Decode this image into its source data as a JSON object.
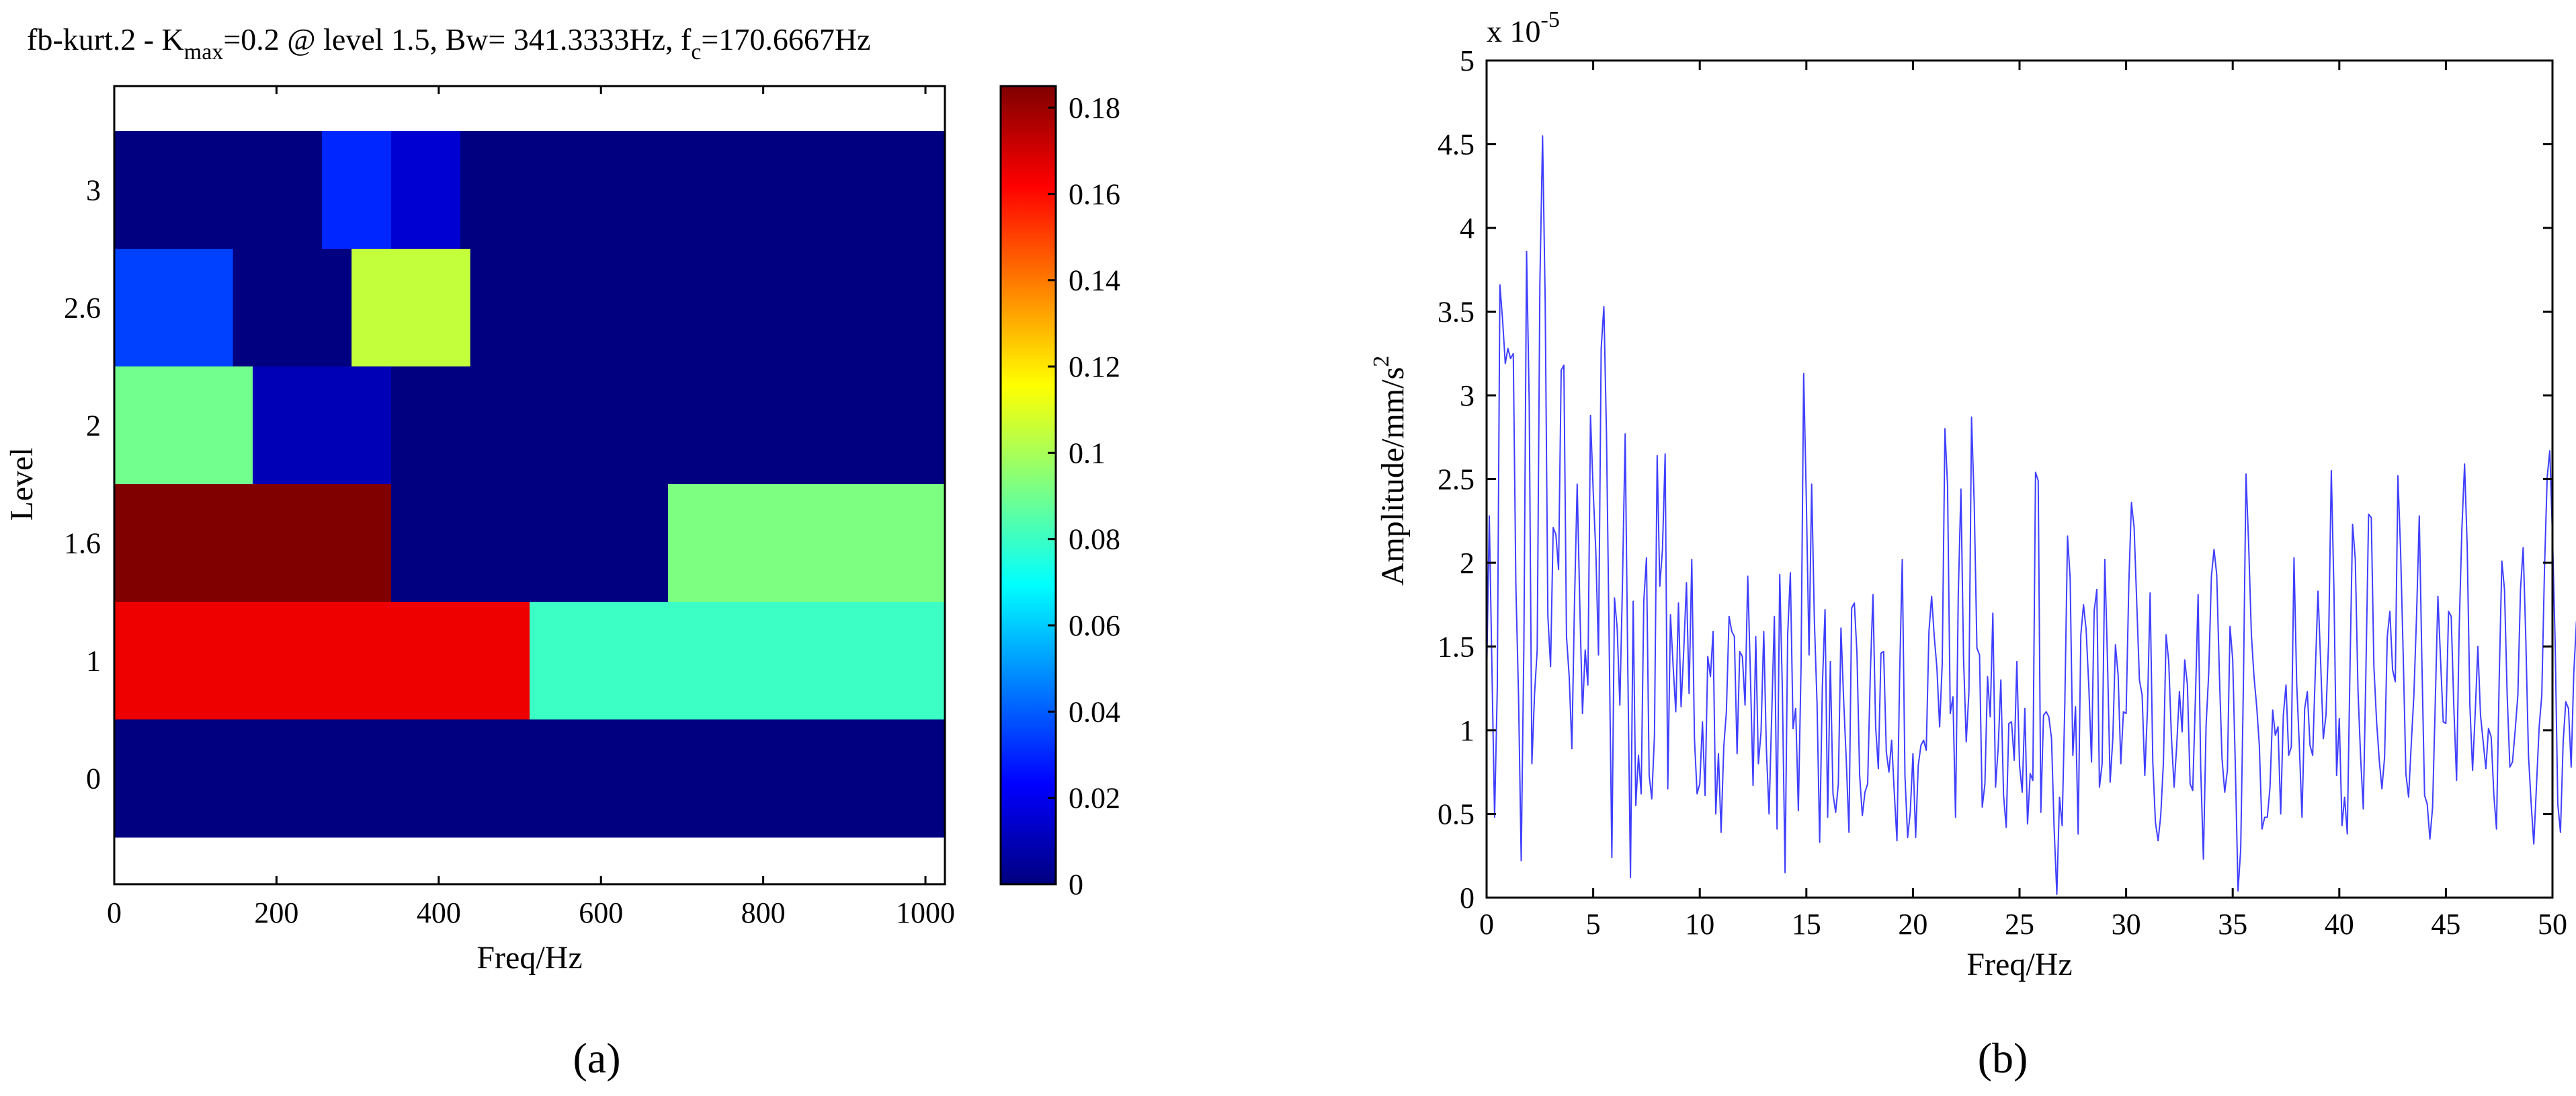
{
  "panel_labels": {
    "a": "(a)",
    "b": "(b)"
  },
  "chart_data": [
    {
      "type": "heatmap",
      "title": {
        "prefix": "fb-kurt.2 - K",
        "sub": "max",
        "middle": "=0.2 @ level 1.5, Bw= 341.3333Hz, f",
        "sub2": "c",
        "suffix": "=170.6667Hz"
      },
      "xlabel": "Freq/Hz",
      "ylabel": "Level",
      "xlim": [
        0,
        1024
      ],
      "xticks": [
        0,
        200,
        400,
        600,
        800,
        1000
      ],
      "levels": [
        "3",
        "2.6",
        "2",
        "1.6",
        "1",
        "0"
      ],
      "colorbar": {
        "min": 0,
        "max": 0.185,
        "ticks": [
          0,
          0.02,
          0.04,
          0.06,
          0.08,
          0.1,
          0.12,
          0.14,
          0.16,
          0.18
        ]
      },
      "rows": [
        {
          "level": "3",
          "values": [
            0,
            0,
            0,
            0.03,
            0.015,
            0,
            0,
            0,
            0,
            0,
            0,
            0
          ]
        },
        {
          "level": "2.6",
          "values": [
            0.035,
            0,
            0.105,
            0,
            0,
            0,
            0
          ]
        },
        {
          "level": "2",
          "values": [
            0.09,
            0.01,
            0,
            0,
            0,
            0
          ]
        },
        {
          "level": "1.6",
          "values": [
            0.185,
            0,
            0.092
          ]
        },
        {
          "level": "1",
          "values": [
            0.165,
            0.08
          ]
        },
        {
          "level": "0",
          "values": [
            0
          ]
        }
      ],
      "grid": false
    },
    {
      "type": "line",
      "xlabel": "Freq/Hz",
      "ylabel": "Amplitude/mm/s",
      "ylabel_sup": "2",
      "y_scale_label": "x 10",
      "y_scale_exp": "-5",
      "xlim": [
        0,
        50
      ],
      "ylim": [
        0,
        5
      ],
      "xticks": [
        0,
        5,
        10,
        15,
        20,
        25,
        30,
        35,
        40,
        45,
        50
      ],
      "yticks": [
        "0",
        "0.5",
        "1",
        "1.5",
        "2",
        "2.5",
        "3",
        "3.5",
        "4",
        "4.5",
        "5"
      ],
      "color": "#3f3fff",
      "grid": false,
      "series": [
        {
          "x_step": 0.125,
          "values": [
            1.3,
            2.28,
            1.38,
            0.48,
            1.25,
            3.66,
            3.45,
            3.19,
            3.28,
            3.22,
            3.25,
            1.86,
            1.19,
            0.22,
            1.52,
            3.86,
            2.96,
            0.8,
            1.22,
            1.48,
            3.67,
            4.55,
            3.56,
            1.68,
            1.38,
            2.21,
            2.17,
            1.96,
            3.15,
            3.18,
            1.56,
            1.32,
            0.89,
            1.76,
            2.47,
            1.73,
            1.1,
            1.48,
            1.27,
            2.88,
            2.43,
            2.06,
            1.45,
            3.28,
            3.53,
            2.77,
            1.52,
            0.24,
            1.79,
            1.61,
            1.15,
            1.88,
            2.77,
            1.38,
            0.12,
            1.77,
            0.55,
            0.85,
            0.62,
            1.77,
            2.03,
            0.73,
            0.59,
            0.97,
            2.64,
            1.86,
            2.08,
            2.65,
            0.65,
            1.69,
            1.38,
            1.11,
            1.76,
            1.14,
            1.48,
            1.88,
            1.22,
            2.02,
            0.95,
            0.62,
            0.68,
            1.05,
            0.61,
            1.44,
            1.32,
            1.59,
            0.5,
            0.86,
            0.39,
            0.9,
            1.11,
            1.68,
            1.59,
            1.56,
            0.86,
            1.47,
            1.44,
            1.15,
            1.92,
            1.34,
            0.67,
            1.56,
            0.8,
            0.99,
            1.59,
            0.89,
            0.5,
            1.1,
            1.68,
            0.41,
            1.93,
            1.24,
            0.15,
            1.57,
            1.94,
            1.01,
            1.13,
            0.52,
            1.38,
            3.13,
            2.37,
            1.45,
            2.47,
            1.66,
            1.16,
            0.33,
            1.26,
            1.72,
            0.48,
            1.41,
            0.62,
            0.51,
            0.68,
            1.61,
            1.18,
            0.81,
            0.39,
            1.73,
            1.76,
            1.46,
            0.73,
            0.49,
            0.63,
            0.68,
            1.34,
            1.81,
            1.02,
            0.77,
            1.46,
            1.47,
            0.87,
            0.75,
            0.94,
            0.63,
            0.34,
            1.33,
            2.02,
            0.73,
            0.36,
            0.51,
            0.86,
            0.36,
            0.79,
            0.91,
            0.94,
            0.88,
            1.59,
            1.8,
            1.56,
            1.37,
            1.02,
            1.4,
            2.8,
            2.46,
            1.1,
            1.2,
            0.48,
            1.8,
            2.44,
            1.43,
            0.93,
            1.23,
            2.87,
            2.35,
            1.49,
            1.45,
            0.54,
            0.68,
            1.32,
            1.08,
            1.7,
            0.66,
            0.9,
            1.3,
            0.61,
            0.42,
            1.04,
            1.05,
            0.82,
            1.41,
            0.79,
            0.63,
            1.13,
            0.44,
            0.74,
            0.7,
            2.54,
            2.49,
            0.51,
            1.09,
            1.11,
            1.08,
            0.95,
            0.41,
            0.02,
            0.6,
            0.43,
            1.16,
            2.16,
            1.91,
            0.85,
            1.14,
            0.38,
            1.57,
            1.75,
            1.6,
            1.26,
            0.81,
            1.71,
            1.84,
            0.66,
            0.8,
            2.02,
            1.43,
            0.69,
            0.95,
            1.51,
            1.33,
            0.8,
            1.11,
            1.1,
            1.87,
            2.36,
            2.21,
            1.75,
            1.3,
            1.21,
            0.73,
            1.12,
            1.82,
            0.81,
            0.45,
            0.34,
            0.49,
            0.81,
            1.57,
            1.41,
            0.96,
            0.66,
            0.91,
            1.23,
            0.99,
            1.42,
            1.27,
            0.68,
            0.64,
            1.19,
            1.81,
            0.77,
            0.23,
            1.03,
            1.34,
            1.92,
            2.08,
            1.93,
            1.33,
            0.83,
            0.63,
            0.76,
            1.62,
            1.42,
            0.77,
            0.04,
            0.29,
            1.27,
            2.53,
            2.1,
            1.57,
            1.32,
            1.14,
            0.91,
            0.41,
            0.48,
            0.48,
            0.66,
            1.12,
            0.97,
            1.02,
            0.5,
            1.09,
            1.27,
            0.85,
            0.9,
            2.03,
            1.28,
            0.91,
            0.48,
            1.13,
            1.23,
            0.91,
            0.85,
            1.35,
            1.83,
            1.41,
            0.95,
            1.09,
            1.53,
            2.55,
            1.82,
            0.73,
            1.07,
            0.43,
            0.6,
            0.38,
            1.37,
            2.23,
            2.02,
            1.24,
            0.84,
            0.53,
            1.35,
            2.29,
            2.27,
            1.38,
            1.05,
            0.82,
            0.65,
            0.84,
            1.56,
            1.71,
            1.36,
            1.29,
            2.52,
            2.07,
            1.43,
            0.74,
            0.6,
            0.92,
            1.21,
            1.69,
            2.28,
            1.41,
            0.61,
            0.56,
            0.35,
            0.54,
            1.15,
            1.8,
            1.42,
            1.05,
            1.04,
            1.71,
            1.68,
            1.13,
            0.7,
            1.61,
            2.2,
            2.59,
            2.1,
            1.15,
            0.76,
            1.1,
            1.5,
            1.09,
            0.93,
            0.77,
            1.01,
            0.96,
            0.61,
            0.41,
            1.3,
            2.01,
            1.84,
            1.21,
            0.78,
            0.81,
            1.0,
            1.21,
            1.84,
            2.09,
            1.55,
            0.85,
            0.56,
            0.32,
            0.67,
            1.02,
            1.21,
            1.96,
            2.51,
            2.67,
            2.16,
            1.52,
            0.56,
            0.39,
            0.93,
            1.17,
            1.13,
            0.78,
            1.34,
            1.65,
            1.68,
            3.01
          ]
        }
      ]
    }
  ]
}
